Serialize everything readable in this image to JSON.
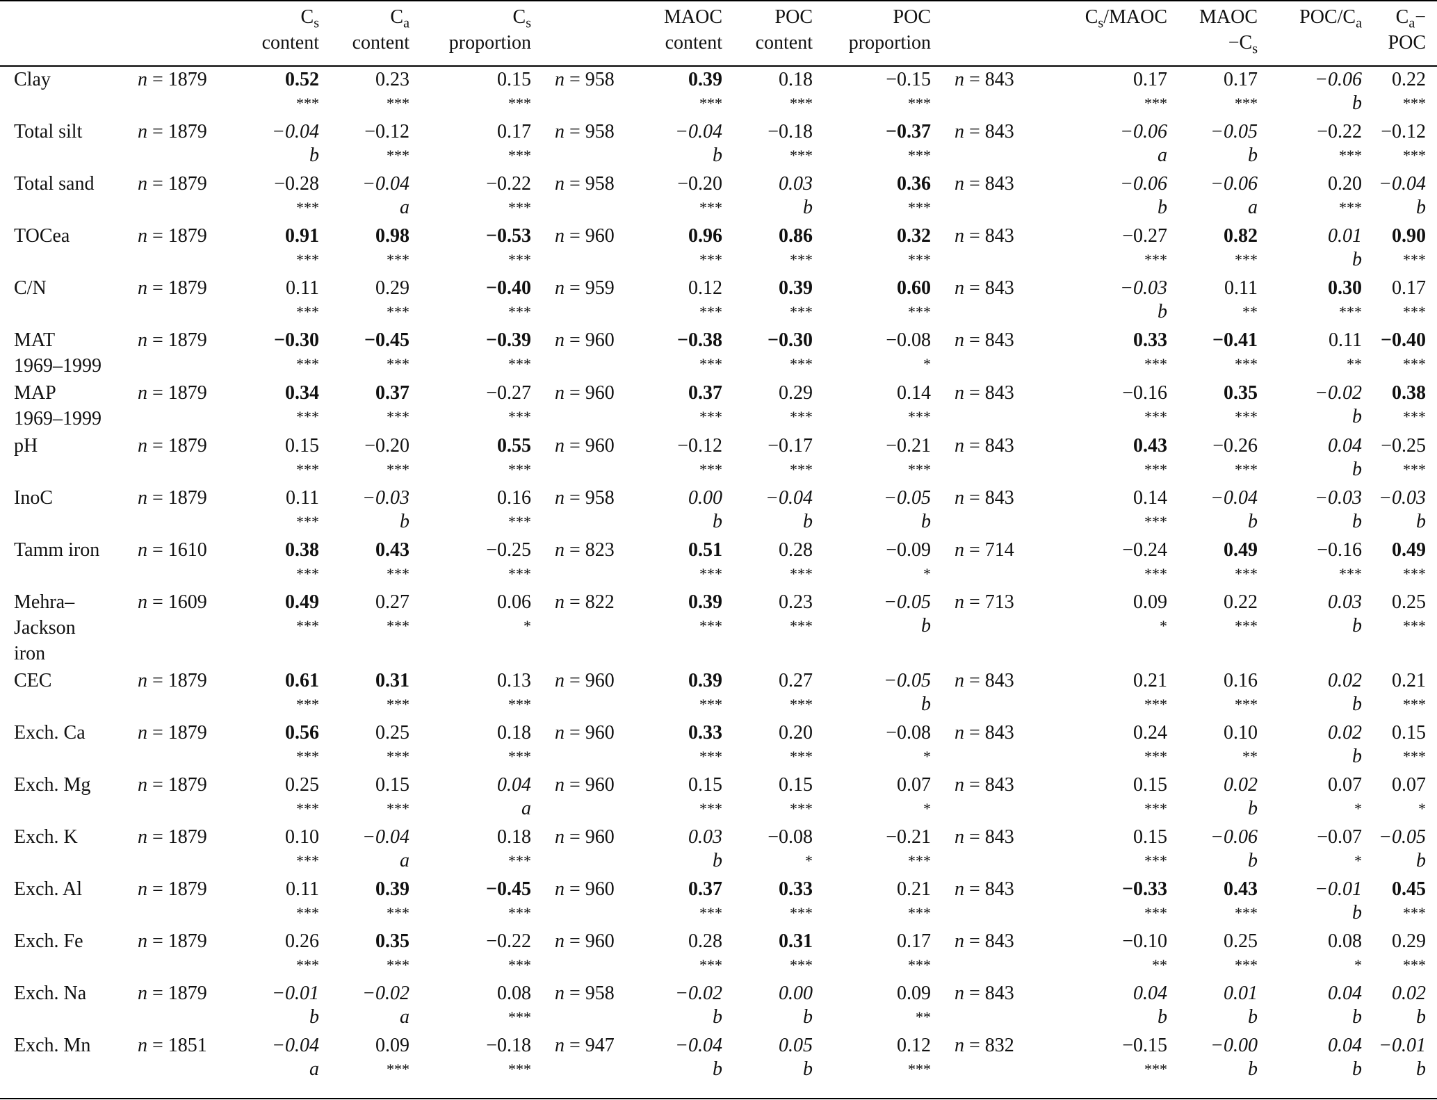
{
  "header": {
    "cols": [
      {
        "l1": "",
        "l2": ""
      },
      {
        "l1": "",
        "l2": ""
      },
      {
        "l1": "C<sub>s</sub>",
        "l2": "content"
      },
      {
        "l1": "C<sub>a</sub>",
        "l2": "content"
      },
      {
        "l1": "C<sub>s</sub>",
        "l2": "proportion"
      },
      {
        "l1": "",
        "l2": ""
      },
      {
        "l1": "MAOC",
        "l2": "content"
      },
      {
        "l1": "POC",
        "l2": "content"
      },
      {
        "l1": "POC",
        "l2": "proportion"
      },
      {
        "l1": "",
        "l2": ""
      },
      {
        "l1": "C<sub>s</sub>/MAOC",
        "l2": ""
      },
      {
        "l1": "MAOC",
        "l2": "−C<sub>s</sub>"
      },
      {
        "l1": "POC/C<sub>a</sub>",
        "l2": ""
      },
      {
        "l1": "C<sub>a</sub>−",
        "l2": "POC"
      }
    ]
  },
  "rows": [
    {
      "label": "Clay",
      "n1": "n = 1879",
      "n2": "n = 958",
      "n3": "n = 843",
      "cells": [
        [
          "0.52",
          "***",
          "b"
        ],
        [
          "0.23",
          "***",
          ""
        ],
        [
          "0.15",
          "***",
          ""
        ],
        [
          "0.39",
          "***",
          "b"
        ],
        [
          "0.18",
          "***",
          ""
        ],
        [
          "−0.15",
          "***",
          ""
        ],
        [
          "0.17",
          "***",
          ""
        ],
        [
          "0.17",
          "***",
          ""
        ],
        [
          "−0.06",
          "b",
          "i"
        ],
        [
          "0.22",
          "***",
          ""
        ]
      ]
    },
    {
      "label": "Total silt",
      "n1": "n = 1879",
      "n2": "n = 958",
      "n3": "n = 843",
      "cells": [
        [
          "−0.04",
          "b",
          "i"
        ],
        [
          "−0.12",
          "***",
          ""
        ],
        [
          "0.17",
          "***",
          ""
        ],
        [
          "−0.04",
          "b",
          "i"
        ],
        [
          "−0.18",
          "***",
          ""
        ],
        [
          "−0.37",
          "***",
          "b"
        ],
        [
          "−0.06",
          "a",
          "i"
        ],
        [
          "−0.05",
          "b",
          "i"
        ],
        [
          "−0.22",
          "***",
          ""
        ],
        [
          "−0.12",
          "***",
          ""
        ]
      ]
    },
    {
      "label": "Total sand",
      "n1": "n = 1879",
      "n2": "n = 958",
      "n3": "n = 843",
      "cells": [
        [
          "−0.28",
          "***",
          ""
        ],
        [
          "−0.04",
          "a",
          "i"
        ],
        [
          "−0.22",
          "***",
          ""
        ],
        [
          "−0.20",
          "***",
          ""
        ],
        [
          "0.03",
          "b",
          "i"
        ],
        [
          "0.36",
          "***",
          "b"
        ],
        [
          "−0.06",
          "b",
          "i"
        ],
        [
          "−0.06",
          "a",
          "i"
        ],
        [
          "0.20",
          "***",
          ""
        ],
        [
          "−0.04",
          "b",
          "i"
        ]
      ]
    },
    {
      "label": "TOCea",
      "n1": "n = 1879",
      "n2": "n = 960",
      "n3": "n = 843",
      "cells": [
        [
          "0.91",
          "***",
          "b"
        ],
        [
          "0.98",
          "***",
          "b"
        ],
        [
          "−0.53",
          "***",
          "b"
        ],
        [
          "0.96",
          "***",
          "b"
        ],
        [
          "0.86",
          "***",
          "b"
        ],
        [
          "0.32",
          "***",
          "b"
        ],
        [
          "−0.27",
          "***",
          ""
        ],
        [
          "0.82",
          "***",
          "b"
        ],
        [
          "0.01",
          "b",
          "i"
        ],
        [
          "0.90",
          "***",
          "b"
        ]
      ]
    },
    {
      "label": "C/N",
      "n1": "n = 1879",
      "n2": "n = 959",
      "n3": "n = 843",
      "cells": [
        [
          "0.11",
          "***",
          ""
        ],
        [
          "0.29",
          "***",
          ""
        ],
        [
          "−0.40",
          "***",
          "b"
        ],
        [
          "0.12",
          "***",
          ""
        ],
        [
          "0.39",
          "***",
          "b"
        ],
        [
          "0.60",
          "***",
          "b"
        ],
        [
          "−0.03",
          "b",
          "i"
        ],
        [
          "0.11",
          "**",
          ""
        ],
        [
          "0.30",
          "***",
          "b"
        ],
        [
          "0.17",
          "***",
          ""
        ]
      ]
    },
    {
      "label": "MAT",
      "label2": "1969–1999",
      "n1": "n = 1879",
      "n2": "n = 960",
      "n3": "n = 843",
      "cells": [
        [
          "−0.30",
          "***",
          "b"
        ],
        [
          "−0.45",
          "***",
          "b"
        ],
        [
          "−0.39",
          "***",
          "b"
        ],
        [
          "−0.38",
          "***",
          "b"
        ],
        [
          "−0.30",
          "***",
          "b"
        ],
        [
          "−0.08",
          "*",
          ""
        ],
        [
          "0.33",
          "***",
          "b"
        ],
        [
          "−0.41",
          "***",
          "b"
        ],
        [
          "0.11",
          "**",
          ""
        ],
        [
          "−0.40",
          "***",
          "b"
        ]
      ]
    },
    {
      "label": "MAP",
      "label2": "1969–1999",
      "n1": "n = 1879",
      "n2": "n = 960",
      "n3": "n = 843",
      "cells": [
        [
          "0.34",
          "***",
          "b"
        ],
        [
          "0.37",
          "***",
          "b"
        ],
        [
          "−0.27",
          "***",
          ""
        ],
        [
          "0.37",
          "***",
          "b"
        ],
        [
          "0.29",
          "***",
          ""
        ],
        [
          "0.14",
          "***",
          ""
        ],
        [
          "−0.16",
          "***",
          ""
        ],
        [
          "0.35",
          "***",
          "b"
        ],
        [
          "−0.02",
          "b",
          "i"
        ],
        [
          "0.38",
          "***",
          "b"
        ]
      ]
    },
    {
      "label": "pH",
      "n1": "n = 1879",
      "n2": "n = 960",
      "n3": "n = 843",
      "cells": [
        [
          "0.15",
          "***",
          ""
        ],
        [
          "−0.20",
          "***",
          ""
        ],
        [
          "0.55",
          "***",
          "b"
        ],
        [
          "−0.12",
          "***",
          ""
        ],
        [
          "−0.17",
          "***",
          ""
        ],
        [
          "−0.21",
          "***",
          ""
        ],
        [
          "0.43",
          "***",
          "b"
        ],
        [
          "−0.26",
          "***",
          ""
        ],
        [
          "0.04",
          "b",
          "i"
        ],
        [
          "−0.25",
          "***",
          ""
        ]
      ]
    },
    {
      "label": "InoC",
      "n1": "n = 1879",
      "n2": "n = 958",
      "n3": "n = 843",
      "cells": [
        [
          "0.11",
          "***",
          ""
        ],
        [
          "−0.03",
          "b",
          "i"
        ],
        [
          "0.16",
          "***",
          ""
        ],
        [
          "0.00",
          "b",
          "i"
        ],
        [
          "−0.04",
          "b",
          "i"
        ],
        [
          "−0.05",
          "b",
          "i"
        ],
        [
          "0.14",
          "***",
          ""
        ],
        [
          "−0.04",
          "b",
          "i"
        ],
        [
          "−0.03",
          "b",
          "i"
        ],
        [
          "−0.03",
          "b",
          "i"
        ]
      ]
    },
    {
      "label": "Tamm iron",
      "n1": "n = 1610",
      "n2": "n = 823",
      "n3": "n = 714",
      "cells": [
        [
          "0.38",
          "***",
          "b"
        ],
        [
          "0.43",
          "***",
          "b"
        ],
        [
          "−0.25",
          "***",
          ""
        ],
        [
          "0.51",
          "***",
          "b"
        ],
        [
          "0.28",
          "***",
          ""
        ],
        [
          "−0.09",
          "*",
          ""
        ],
        [
          "−0.24",
          "***",
          ""
        ],
        [
          "0.49",
          "***",
          "b"
        ],
        [
          "−0.16",
          "***",
          ""
        ],
        [
          "0.49",
          "***",
          "b"
        ]
      ]
    },
    {
      "label": "Mehra–",
      "label2": "Jackson",
      "label3": "iron",
      "n1": "n = 1609",
      "n2": "n = 822",
      "n3": "n = 713",
      "cells": [
        [
          "0.49",
          "***",
          "b"
        ],
        [
          "0.27",
          "***",
          ""
        ],
        [
          "0.06",
          "*",
          ""
        ],
        [
          "0.39",
          "***",
          "b"
        ],
        [
          "0.23",
          "***",
          ""
        ],
        [
          "−0.05",
          "b",
          "i"
        ],
        [
          "0.09",
          "*",
          ""
        ],
        [
          "0.22",
          "***",
          ""
        ],
        [
          "0.03",
          "b",
          "i"
        ],
        [
          "0.25",
          "***",
          ""
        ]
      ]
    },
    {
      "label": "CEC",
      "n1": "n = 1879",
      "n2": "n = 960",
      "n3": "n = 843",
      "cells": [
        [
          "0.61",
          "***",
          "b"
        ],
        [
          "0.31",
          "***",
          "b"
        ],
        [
          "0.13",
          "***",
          ""
        ],
        [
          "0.39",
          "***",
          "b"
        ],
        [
          "0.27",
          "***",
          ""
        ],
        [
          "−0.05",
          "b",
          "i"
        ],
        [
          "0.21",
          "***",
          ""
        ],
        [
          "0.16",
          "***",
          ""
        ],
        [
          "0.02",
          "b",
          "i"
        ],
        [
          "0.21",
          "***",
          ""
        ]
      ]
    },
    {
      "label": "Exch. Ca",
      "n1": "n = 1879",
      "n2": "n = 960",
      "n3": "n = 843",
      "cells": [
        [
          "0.56",
          "***",
          "b"
        ],
        [
          "0.25",
          "***",
          ""
        ],
        [
          "0.18",
          "***",
          ""
        ],
        [
          "0.33",
          "***",
          "b"
        ],
        [
          "0.20",
          "***",
          ""
        ],
        [
          "−0.08",
          "*",
          ""
        ],
        [
          "0.24",
          "***",
          ""
        ],
        [
          "0.10",
          "**",
          ""
        ],
        [
          "0.02",
          "b",
          "i"
        ],
        [
          "0.15",
          "***",
          ""
        ]
      ]
    },
    {
      "label": "Exch. Mg",
      "n1": "n = 1879",
      "n2": "n = 960",
      "n3": "n = 843",
      "cells": [
        [
          "0.25",
          "***",
          ""
        ],
        [
          "0.15",
          "***",
          ""
        ],
        [
          "0.04",
          "a",
          "i"
        ],
        [
          "0.15",
          "***",
          ""
        ],
        [
          "0.15",
          "***",
          ""
        ],
        [
          "0.07",
          "*",
          ""
        ],
        [
          "0.15",
          "***",
          ""
        ],
        [
          "0.02",
          "b",
          "i"
        ],
        [
          "0.07",
          "*",
          ""
        ],
        [
          "0.07",
          "*",
          ""
        ]
      ]
    },
    {
      "label": "Exch. K",
      "n1": "n = 1879",
      "n2": "n = 960",
      "n3": "n = 843",
      "cells": [
        [
          "0.10",
          "***",
          ""
        ],
        [
          "−0.04",
          "a",
          "i"
        ],
        [
          "0.18",
          "***",
          ""
        ],
        [
          "0.03",
          "b",
          "i"
        ],
        [
          "−0.08",
          "*",
          ""
        ],
        [
          "−0.21",
          "***",
          ""
        ],
        [
          "0.15",
          "***",
          ""
        ],
        [
          "−0.06",
          "b",
          "i"
        ],
        [
          "−0.07",
          "*",
          ""
        ],
        [
          "−0.05",
          "b",
          "i"
        ]
      ]
    },
    {
      "label": "Exch. Al",
      "n1": "n = 1879",
      "n2": "n = 960",
      "n3": "n = 843",
      "cells": [
        [
          "0.11",
          "***",
          ""
        ],
        [
          "0.39",
          "***",
          "b"
        ],
        [
          "−0.45",
          "***",
          "b"
        ],
        [
          "0.37",
          "***",
          "b"
        ],
        [
          "0.33",
          "***",
          "b"
        ],
        [
          "0.21",
          "***",
          ""
        ],
        [
          "−0.33",
          "***",
          "b"
        ],
        [
          "0.43",
          "***",
          "b"
        ],
        [
          "−0.01",
          "b",
          "i"
        ],
        [
          "0.45",
          "***",
          "b"
        ]
      ]
    },
    {
      "label": "Exch. Fe",
      "n1": "n = 1879",
      "n2": "n = 960",
      "n3": "n = 843",
      "cells": [
        [
          "0.26",
          "***",
          ""
        ],
        [
          "0.35",
          "***",
          "b"
        ],
        [
          "−0.22",
          "***",
          ""
        ],
        [
          "0.28",
          "***",
          ""
        ],
        [
          "0.31",
          "***",
          "b"
        ],
        [
          "0.17",
          "***",
          ""
        ],
        [
          "−0.10",
          "**",
          ""
        ],
        [
          "0.25",
          "***",
          ""
        ],
        [
          "0.08",
          "*",
          ""
        ],
        [
          "0.29",
          "***",
          ""
        ]
      ]
    },
    {
      "label": "Exch. Na",
      "n1": "n = 1879",
      "n2": "n = 958",
      "n3": "n = 843",
      "cells": [
        [
          "−0.01",
          "b",
          "i"
        ],
        [
          "−0.02",
          "a",
          "i"
        ],
        [
          "0.08",
          "***",
          ""
        ],
        [
          "−0.02",
          "b",
          "i"
        ],
        [
          "0.00",
          "b",
          "i"
        ],
        [
          "0.09",
          "**",
          ""
        ],
        [
          "0.04",
          "b",
          "i"
        ],
        [
          "0.01",
          "b",
          "i"
        ],
        [
          "0.04",
          "b",
          "i"
        ],
        [
          "0.02",
          "b",
          "i"
        ]
      ]
    },
    {
      "label": "Exch. Mn",
      "n1": "n = 1851",
      "n2": "n = 947",
      "n3": "n = 832",
      "cells": [
        [
          "−0.04",
          "a",
          "i"
        ],
        [
          "0.09",
          "***",
          ""
        ],
        [
          "−0.18",
          "***",
          ""
        ],
        [
          "−0.04",
          "b",
          "i"
        ],
        [
          "0.05",
          "b",
          "i"
        ],
        [
          "0.12",
          "***",
          ""
        ],
        [
          "−0.15",
          "***",
          ""
        ],
        [
          "−0.00",
          "b",
          "i"
        ],
        [
          "0.04",
          "b",
          "i"
        ],
        [
          "−0.01",
          "b",
          "i"
        ]
      ]
    }
  ]
}
